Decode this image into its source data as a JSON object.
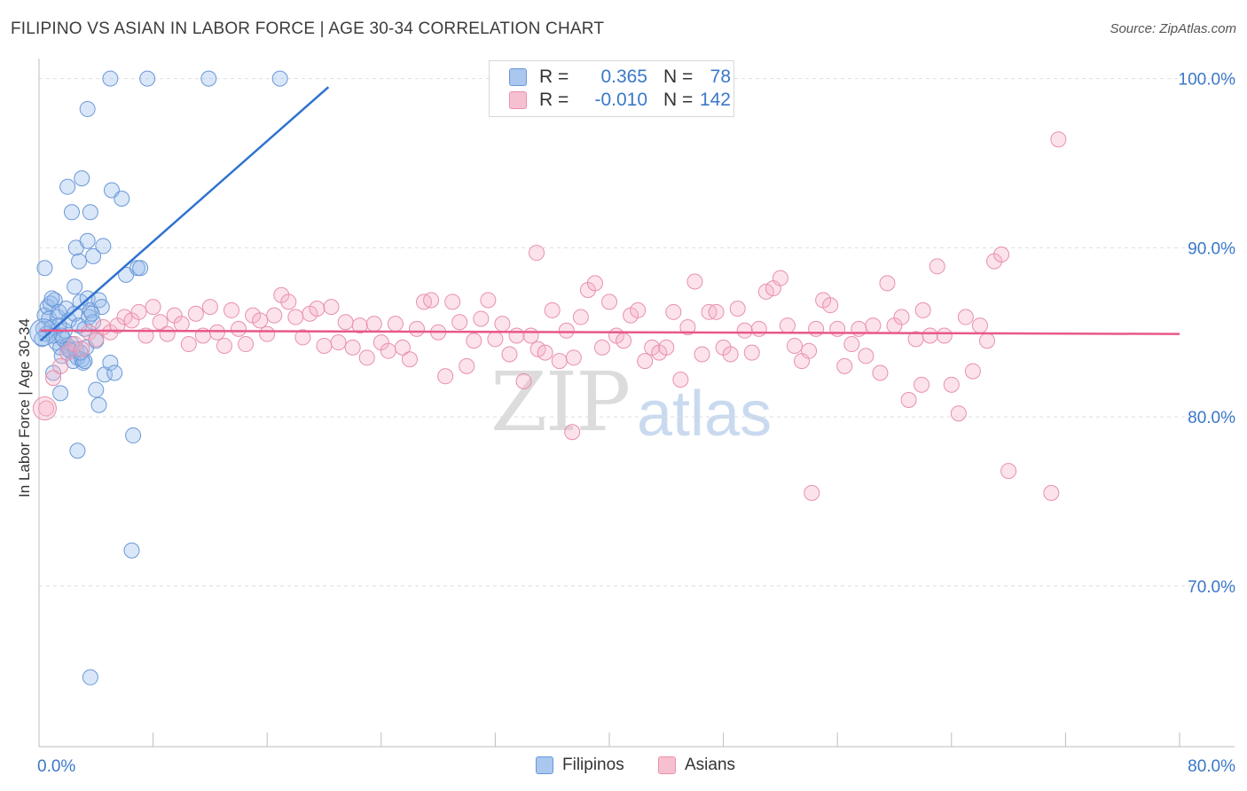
{
  "title": "FILIPINO VS ASIAN IN LABOR FORCE | AGE 30-34 CORRELATION CHART",
  "source": "Source: ZipAtlas.com",
  "watermark": {
    "zip": "ZIP",
    "atlas": "atlas"
  },
  "legend": {
    "rows": [
      {
        "r_label": "R =",
        "r_value": "0.365",
        "n_label": "N =",
        "n_value": "78",
        "color": "#a9c7ef",
        "border": "#6a98d8",
        "value_color": "#3a78c8"
      },
      {
        "r_label": "R =",
        "r_value": "-0.010",
        "n_label": "N =",
        "n_value": "142",
        "color": "#f7c0d0",
        "border": "#e890ab",
        "value_color": "#3a78c8"
      }
    ]
  },
  "bottom_legend": [
    {
      "label": "Filipinos",
      "color": "#a9c7ef",
      "border": "#6a98d8"
    },
    {
      "label": "Asians",
      "color": "#f7c0d0",
      "border": "#e890ab"
    }
  ],
  "chart_data": {
    "type": "scatter",
    "title": "FILIPINO VS ASIAN IN LABOR FORCE | AGE 30-34 CORRELATION CHART",
    "xlabel": "",
    "ylabel": "In Labor Force | Age 30-34",
    "xlim": [
      0,
      80
    ],
    "ylim": [
      60.5,
      101.5
    ],
    "x_tick_labels": [
      {
        "value": 0,
        "label": "0.0%"
      },
      {
        "value": 80,
        "label": "80.0%"
      }
    ],
    "y_tick_labels": [
      {
        "value": 100,
        "label": "100.0%"
      },
      {
        "value": 90,
        "label": "90.0%"
      },
      {
        "value": 80,
        "label": "80.0%"
      },
      {
        "value": 70,
        "label": "70.0%"
      }
    ],
    "y_gridlines": [
      100,
      90,
      80,
      70
    ],
    "x_minor_ticks": [
      8,
      16,
      24,
      32,
      40,
      48,
      56,
      64,
      72,
      80
    ],
    "series": [
      {
        "name": "Filipinos",
        "color": "#6a98d8",
        "fill": "rgba(150,185,235,0.35)",
        "trend": {
          "x": [
            0.1,
            20.3
          ],
          "y": [
            84.5,
            99.5
          ],
          "color": "#2f72d0"
        },
        "points": [
          [
            0.3,
            85.2
          ],
          [
            0.4,
            86.0
          ],
          [
            0.5,
            84.9
          ],
          [
            0.6,
            86.5
          ],
          [
            0.7,
            85.8
          ],
          [
            0.8,
            86.7
          ],
          [
            0.9,
            85.3
          ],
          [
            1.0,
            84.8
          ],
          [
            1.1,
            86.9
          ],
          [
            1.2,
            84.4
          ],
          [
            1.3,
            85.9
          ],
          [
            1.4,
            86.2
          ],
          [
            1.5,
            84.1
          ],
          [
            1.6,
            83.6
          ],
          [
            1.7,
            84.6
          ],
          [
            1.8,
            85.1
          ],
          [
            1.9,
            86.4
          ],
          [
            2.0,
            84.2
          ],
          [
            2.1,
            85.7
          ],
          [
            2.2,
            83.9
          ],
          [
            2.3,
            84.3
          ],
          [
            2.4,
            83.3
          ],
          [
            2.5,
            86.1
          ],
          [
            2.6,
            84.0
          ],
          [
            2.7,
            83.5
          ],
          [
            2.8,
            85.4
          ],
          [
            2.9,
            86.8
          ],
          [
            3.0,
            83.4
          ],
          [
            3.1,
            83.2
          ],
          [
            3.2,
            85.2
          ],
          [
            3.3,
            84.1
          ],
          [
            3.4,
            87.0
          ],
          [
            3.5,
            85.9
          ],
          [
            3.6,
            86.3
          ],
          [
            3.8,
            85.6
          ],
          [
            4.0,
            84.5
          ],
          [
            4.2,
            86.9
          ],
          [
            4.4,
            86.5
          ],
          [
            0.4,
            88.8
          ],
          [
            1.0,
            82.6
          ],
          [
            1.5,
            81.4
          ],
          [
            1.6,
            84.8
          ],
          [
            2.0,
            93.6
          ],
          [
            2.3,
            92.1
          ],
          [
            2.5,
            87.7
          ],
          [
            2.6,
            90.0
          ],
          [
            2.8,
            89.2
          ],
          [
            3.0,
            94.1
          ],
          [
            3.2,
            83.3
          ],
          [
            3.4,
            90.4
          ],
          [
            3.6,
            92.1
          ],
          [
            3.8,
            89.5
          ],
          [
            4.0,
            81.6
          ],
          [
            4.2,
            80.7
          ],
          [
            4.5,
            90.1
          ],
          [
            4.6,
            82.5
          ],
          [
            5.0,
            83.2
          ],
          [
            5.1,
            93.4
          ],
          [
            5.3,
            82.6
          ],
          [
            5.8,
            92.9
          ],
          [
            6.1,
            88.4
          ],
          [
            6.6,
            78.9
          ],
          [
            6.9,
            88.8
          ],
          [
            7.1,
            88.8
          ],
          [
            5.0,
            100.0
          ],
          [
            7.6,
            100.0
          ],
          [
            11.9,
            100.0
          ],
          [
            16.9,
            100.0
          ],
          [
            3.4,
            98.2
          ],
          [
            2.7,
            78.0
          ],
          [
            6.5,
            72.1
          ],
          [
            3.6,
            64.6
          ],
          [
            0.2,
            84.6
          ],
          [
            0.9,
            87.0
          ],
          [
            1.4,
            85.4
          ],
          [
            2.1,
            84.0
          ],
          [
            2.9,
            83.8
          ],
          [
            3.7,
            86.1
          ]
        ]
      },
      {
        "name": "Asians",
        "color": "#e890ab",
        "fill": "rgba(245,175,198,0.35)",
        "trend": {
          "x": [
            0.1,
            80.0
          ],
          "y": [
            85.1,
            84.9
          ],
          "color": "#e8588a"
        },
        "points": [
          [
            0.5,
            80.5
          ],
          [
            1.0,
            82.3
          ],
          [
            1.5,
            83.0
          ],
          [
            2.0,
            83.8
          ],
          [
            2.5,
            84.3
          ],
          [
            3.0,
            84.0
          ],
          [
            3.5,
            85.0
          ],
          [
            4.0,
            84.6
          ],
          [
            4.5,
            85.3
          ],
          [
            5.0,
            85.0
          ],
          [
            5.5,
            85.4
          ],
          [
            6.0,
            85.9
          ],
          [
            6.5,
            85.7
          ],
          [
            7.0,
            86.2
          ],
          [
            7.5,
            84.8
          ],
          [
            8.0,
            86.5
          ],
          [
            8.5,
            85.6
          ],
          [
            9.0,
            84.9
          ],
          [
            9.5,
            86.0
          ],
          [
            10.0,
            85.5
          ],
          [
            10.5,
            84.3
          ],
          [
            11.0,
            86.1
          ],
          [
            11.5,
            84.8
          ],
          [
            12.0,
            86.5
          ],
          [
            12.5,
            85.0
          ],
          [
            13.0,
            84.2
          ],
          [
            13.5,
            86.3
          ],
          [
            14.0,
            85.2
          ],
          [
            14.5,
            84.3
          ],
          [
            15.0,
            86.0
          ],
          [
            15.5,
            85.7
          ],
          [
            16.0,
            84.9
          ],
          [
            16.5,
            86.0
          ],
          [
            17.0,
            87.2
          ],
          [
            17.5,
            86.8
          ],
          [
            18.0,
            85.9
          ],
          [
            18.5,
            84.7
          ],
          [
            19.0,
            86.1
          ],
          [
            19.5,
            86.4
          ],
          [
            20.0,
            84.2
          ],
          [
            20.5,
            86.5
          ],
          [
            21.0,
            84.4
          ],
          [
            21.5,
            85.6
          ],
          [
            22.0,
            84.1
          ],
          [
            22.5,
            85.4
          ],
          [
            23.0,
            83.5
          ],
          [
            23.5,
            85.5
          ],
          [
            24.0,
            84.4
          ],
          [
            24.5,
            83.9
          ],
          [
            25.0,
            85.5
          ],
          [
            25.5,
            84.1
          ],
          [
            26.0,
            83.4
          ],
          [
            26.5,
            85.2
          ],
          [
            27.0,
            86.8
          ],
          [
            27.5,
            86.9
          ],
          [
            28.0,
            85.0
          ],
          [
            28.5,
            82.4
          ],
          [
            29.0,
            86.8
          ],
          [
            29.5,
            85.6
          ],
          [
            30.0,
            83.0
          ],
          [
            30.5,
            84.5
          ],
          [
            31.0,
            85.8
          ],
          [
            31.5,
            86.9
          ],
          [
            32.0,
            84.6
          ],
          [
            32.5,
            85.5
          ],
          [
            33.0,
            83.7
          ],
          [
            33.5,
            84.8
          ],
          [
            34.0,
            82.1
          ],
          [
            34.5,
            84.8
          ],
          [
            35.0,
            84.0
          ],
          [
            35.5,
            83.8
          ],
          [
            36.0,
            86.3
          ],
          [
            36.5,
            83.3
          ],
          [
            37.0,
            85.1
          ],
          [
            37.5,
            83.5
          ],
          [
            38.0,
            85.9
          ],
          [
            38.5,
            87.5
          ],
          [
            39.0,
            87.9
          ],
          [
            39.5,
            84.1
          ],
          [
            40.0,
            86.8
          ],
          [
            40.5,
            84.8
          ],
          [
            41.0,
            84.5
          ],
          [
            41.5,
            86.0
          ],
          [
            42.0,
            86.3
          ],
          [
            42.5,
            83.3
          ],
          [
            43.0,
            84.1
          ],
          [
            43.5,
            83.8
          ],
          [
            44.0,
            84.1
          ],
          [
            44.5,
            86.2
          ],
          [
            45.0,
            82.2
          ],
          [
            45.5,
            85.3
          ],
          [
            46.0,
            88.0
          ],
          [
            46.5,
            83.7
          ],
          [
            47.0,
            86.2
          ],
          [
            47.5,
            86.2
          ],
          [
            48.0,
            84.1
          ],
          [
            48.5,
            83.7
          ],
          [
            49.0,
            86.4
          ],
          [
            49.5,
            85.1
          ],
          [
            50.0,
            83.8
          ],
          [
            50.5,
            85.2
          ],
          [
            51.0,
            87.4
          ],
          [
            51.5,
            87.6
          ],
          [
            52.0,
            88.2
          ],
          [
            52.5,
            85.4
          ],
          [
            53.0,
            84.2
          ],
          [
            53.5,
            83.3
          ],
          [
            54.0,
            83.9
          ],
          [
            54.5,
            85.2
          ],
          [
            55.0,
            86.9
          ],
          [
            55.5,
            86.6
          ],
          [
            56.0,
            85.2
          ],
          [
            56.5,
            83.0
          ],
          [
            57.0,
            84.3
          ],
          [
            57.5,
            85.2
          ],
          [
            58.0,
            83.6
          ],
          [
            58.5,
            85.4
          ],
          [
            59.0,
            82.6
          ],
          [
            59.5,
            87.9
          ],
          [
            60.0,
            85.4
          ],
          [
            60.5,
            85.9
          ],
          [
            61.0,
            81.0
          ],
          [
            61.5,
            84.6
          ],
          [
            62.0,
            86.3
          ],
          [
            62.5,
            84.8
          ],
          [
            63.0,
            88.9
          ],
          [
            63.5,
            84.8
          ],
          [
            64.0,
            81.9
          ],
          [
            64.5,
            80.2
          ],
          [
            65.0,
            85.9
          ],
          [
            65.5,
            82.7
          ],
          [
            66.0,
            85.4
          ],
          [
            66.5,
            84.5
          ],
          [
            67.0,
            89.2
          ],
          [
            67.5,
            89.6
          ],
          [
            68.0,
            76.8
          ],
          [
            71.5,
            96.4
          ],
          [
            71.0,
            75.5
          ],
          [
            54.2,
            75.5
          ],
          [
            37.4,
            79.1
          ],
          [
            34.9,
            89.7
          ],
          [
            61.9,
            81.9
          ]
        ]
      }
    ]
  }
}
